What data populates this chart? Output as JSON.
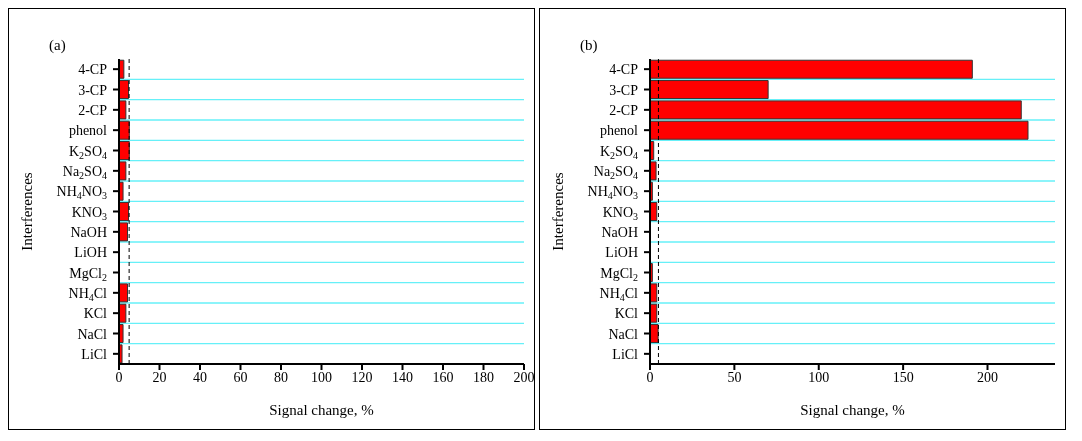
{
  "chart_data": [
    {
      "type": "bar",
      "orientation": "horizontal",
      "annotations": [
        "(a)"
      ],
      "xlabel": "Signal change, %",
      "ylabel": "Interferences",
      "categories": [
        "4-CP",
        "3-CP",
        "2-CP",
        "phenol",
        "K$_{2}$SO$_{4}$",
        "Na$_{2}$SO$_{4}$",
        "NH$_{4}$NO$_{3}$",
        "KNO$_{3}$",
        "NaOH",
        "LiOH",
        "MgCl$_{2}$",
        "NH$_{4}$Cl",
        "KCl",
        "NaCl",
        "LiCl"
      ],
      "values": [
        2.4,
        4.7,
        3.4,
        5.1,
        5.1,
        3.4,
        2.0,
        4.7,
        4.2,
        0,
        0,
        4.2,
        3.4,
        2.0,
        1.5
      ],
      "color": "#ff0000",
      "xlim": [
        0,
        200
      ],
      "xticks": [
        0,
        20,
        40,
        60,
        80,
        100,
        120,
        140,
        160,
        180,
        200
      ],
      "grid": "y",
      "ref_lines": [
        {
          "axis": "x",
          "value": 5,
          "color": "#000000",
          "line_style": "dashed"
        }
      ]
    },
    {
      "type": "bar",
      "orientation": "horizontal",
      "annotations": [
        "(b)"
      ],
      "xlabel": "Signal change, %",
      "ylabel": "Interferences",
      "categories": [
        "4-CP",
        "3-CP",
        "2-CP",
        "phenol",
        "K$_{2}$SO$_{4}$",
        "Na$_{2}$SO$_{4}$",
        "NH$_{4}$NO$_{3}$",
        "KNO$_{3}$",
        "NaOH",
        "LiOH",
        "MgCl$_{2}$",
        "NH$_{4}$Cl",
        "KCl",
        "NaCl",
        "LiCl"
      ],
      "values": [
        191,
        70,
        220,
        224,
        2.2,
        3.6,
        1.4,
        4,
        0,
        0,
        1.4,
        4,
        4,
        4.8,
        0
      ],
      "color": "#ff0000",
      "xlim": [
        0,
        240
      ],
      "xticks": [
        0,
        50,
        100,
        150,
        200
      ],
      "grid": "y",
      "ref_lines": [
        {
          "axis": "x",
          "value": 5,
          "color": "#000000",
          "line_style": "dashed"
        }
      ]
    }
  ]
}
